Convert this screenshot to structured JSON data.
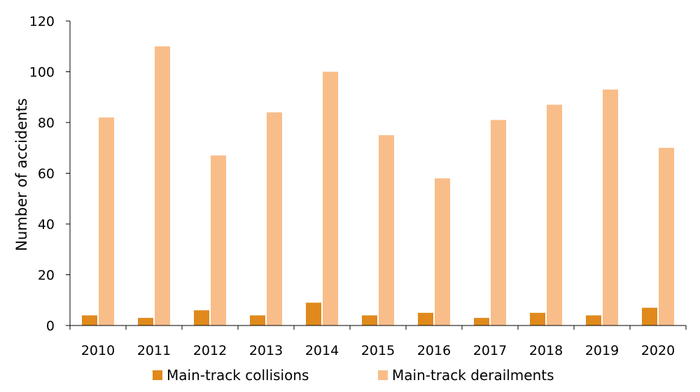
{
  "chart_data": {
    "type": "bar",
    "title": "",
    "xlabel": "",
    "ylabel": "Number of accidents",
    "ylim": [
      0,
      120
    ],
    "yticks": [
      0,
      20,
      40,
      60,
      80,
      100,
      120
    ],
    "grid": false,
    "legend_position": "bottom",
    "categories": [
      "2010",
      "2011",
      "2012",
      "2013",
      "2014",
      "2015",
      "2016",
      "2017",
      "2018",
      "2019",
      "2020"
    ],
    "series": [
      {
        "name": "Main-track collisions",
        "color": "#e08a1e",
        "values": [
          4,
          3,
          6,
          4,
          9,
          4,
          5,
          3,
          5,
          4,
          7
        ]
      },
      {
        "name": "Main-track derailments",
        "color": "#f9bd8a",
        "values": [
          82,
          110,
          67,
          84,
          100,
          75,
          58,
          81,
          87,
          93,
          70
        ]
      }
    ]
  }
}
